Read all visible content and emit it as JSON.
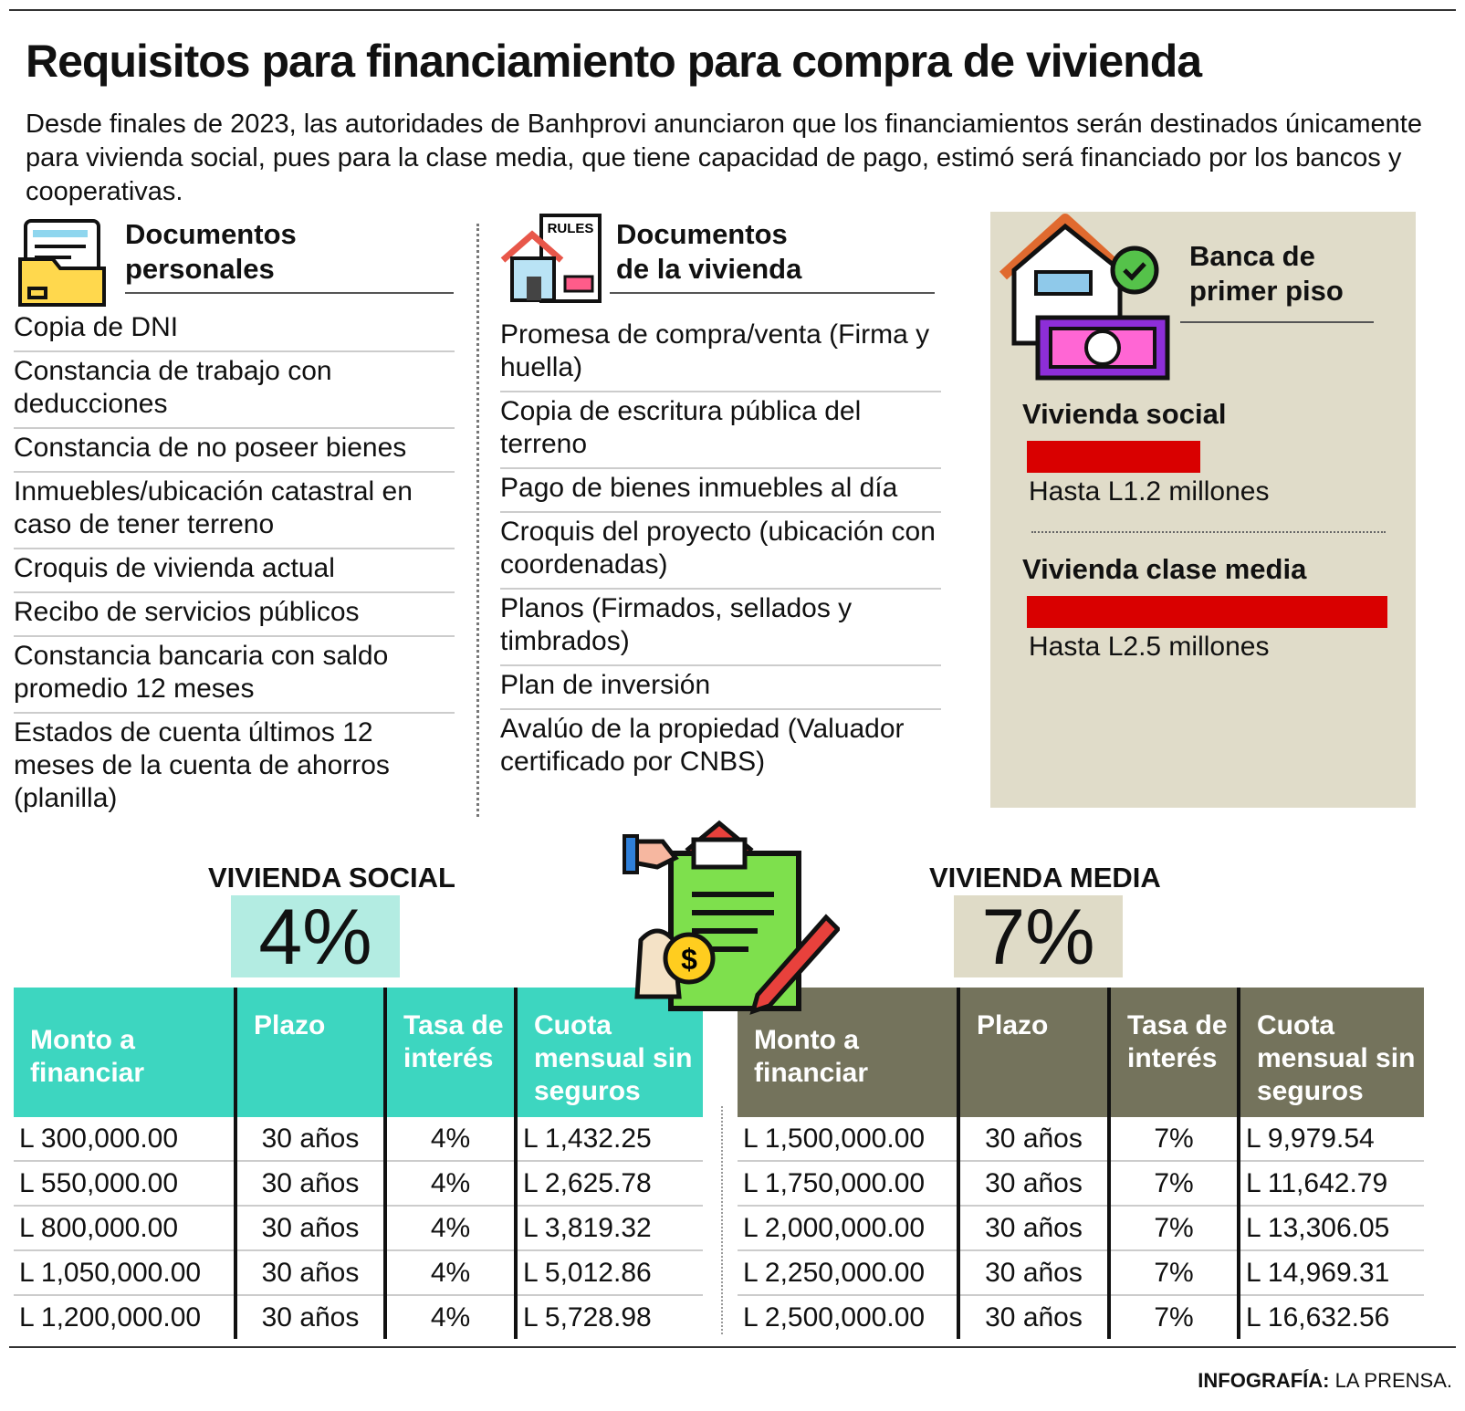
{
  "header": {
    "title": "Requisitos para financiamiento para compra de vivienda",
    "subtitle": "Desde finales de 2023, las autoridades de Banhprovi anunciaron que los financiamientos serán destinados únicamente para vivienda social, pues para la clase media, que tiene capacidad de pago, estimó será financiado por los bancos y cooperativas."
  },
  "sections": [
    {
      "title": "Documentos personales",
      "items": [
        "Copia de DNI",
        "Constancia de trabajo con deducciones",
        "Constancia de no poseer bienes",
        "Inmuebles/ubicación catastral en caso de tener terreno",
        "Croquis de vivienda actual",
        "Recibo de servicios públicos",
        "Constancia bancaria con saldo promedio 12 meses",
        "Estados de cuenta últimos 12 meses de la cuenta de ahorros (planilla)"
      ]
    },
    {
      "title": "Documentos de la vivienda",
      "items": [
        "Promesa de compra/venta (Firma y huella)",
        "Copia de escritura pública del terreno",
        "Pago de bienes inmuebles al día",
        "Croquis del proyecto (ubicación con coordenadas)",
        "Planos (Firmados, sellados y timbrados)",
        "Plan de inversión",
        "Avalúo de la propiedad (Valuador certificado por CNBS)"
      ]
    }
  ],
  "banca": {
    "title": "Banca de primer piso",
    "color": "#d90000",
    "items": [
      {
        "name": "Vivienda social",
        "value": 1.2,
        "label": "Hasta L1.2 millones"
      },
      {
        "name": "Vivienda clase media",
        "value": 2.5,
        "label": "Hasta L2.5 millones"
      }
    ]
  },
  "tables": [
    {
      "title": "VIVIENDA SOCIAL",
      "rate": "4%",
      "color": "#3dd6c0",
      "rate_color": "#b3ece2",
      "headers": [
        "Monto a financiar",
        "Plazo",
        "Tasa de interés",
        "Cuota mensual sin seguros"
      ],
      "rows": [
        [
          "L 300,000.00",
          "30 años",
          "4%",
          "L 1,432.25"
        ],
        [
          "L 550,000.00",
          "30 años",
          "4%",
          "L 2,625.78"
        ],
        [
          "L 800,000.00",
          "30 años",
          "4%",
          "L 3,819.32"
        ],
        [
          "L 1,050,000.00",
          "30 años",
          "4%",
          "L 5,012.86"
        ],
        [
          "L 1,200,000.00",
          "30 años",
          "4%",
          "L 5,728.98"
        ]
      ]
    },
    {
      "title": "VIVIENDA MEDIA",
      "rate": "7%",
      "color": "#74735c",
      "rate_color": "#dfdbc7",
      "headers": [
        "Monto a financiar",
        "Plazo",
        "Tasa de interés",
        "Cuota mensual sin seguros"
      ],
      "rows": [
        [
          "L 1,500,000.00",
          "30 años",
          "7%",
          "L 9,979.54"
        ],
        [
          "L 1,750,000.00",
          "30 años",
          "7%",
          "L 11,642.79"
        ],
        [
          "L 2,000,000.00",
          "30 años",
          "7%",
          "L 13,306.05"
        ],
        [
          "L 2,250,000.00",
          "30 años",
          "7%",
          "L 14,969.31"
        ],
        [
          "L 2,500,000.00",
          "30 años",
          "7%",
          "L 16,632.56"
        ]
      ]
    }
  ],
  "footer": {
    "credit_label": "INFOGRAFÍA:",
    "credit": "LA PRENSA."
  }
}
